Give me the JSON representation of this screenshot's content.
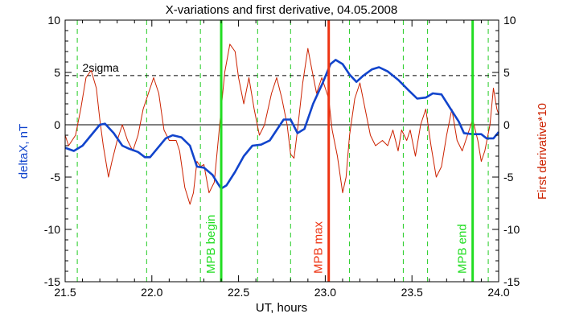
{
  "chart_data": {
    "type": "line",
    "title": "X-variations and first derivative, 04.05.2008",
    "xlabel": "UT, hours",
    "ylabel_left": "deltaX, nT",
    "ylabel_right": "First derivative*10",
    "xlim": [
      21.5,
      24.0
    ],
    "ylim": [
      -15,
      10
    ],
    "x_ticks": [
      21.5,
      22.0,
      22.5,
      23.0,
      23.5,
      24.0
    ],
    "x_tick_labels": [
      "21.5",
      "22.0",
      "22.5",
      "23.0",
      "23.5",
      "24.0"
    ],
    "y_ticks": [
      -15,
      -10,
      -5,
      0,
      5,
      10
    ],
    "y_tick_labels": [
      "-15",
      "-10",
      "-5",
      "0",
      "5",
      "10"
    ],
    "threshold": {
      "value": 4.7,
      "label": "2sigma",
      "style": "dashed"
    },
    "zero_line": 0,
    "dashed_verticals": [
      21.57,
      21.97,
      22.28,
      22.61,
      22.8,
      23.14,
      23.45,
      23.59,
      23.94
    ],
    "markers": [
      {
        "x": 22.4,
        "label": "MPB begin",
        "color": "#22dd22"
      },
      {
        "x": 23.02,
        "label": "MPB max",
        "color": "#ee3311"
      },
      {
        "x": 23.85,
        "label": "MPB end",
        "color": "#22dd22"
      }
    ],
    "series": [
      {
        "color": "#1144cc",
        "points": [
          [
            21.5,
            -2.2
          ],
          [
            21.55,
            -2.5
          ],
          [
            21.6,
            -2.0
          ],
          [
            21.65,
            -1.0
          ],
          [
            21.7,
            0.0
          ],
          [
            21.73,
            0.1
          ],
          [
            21.78,
            -0.8
          ],
          [
            21.83,
            -2.0
          ],
          [
            21.87,
            -2.3
          ],
          [
            21.92,
            -2.6
          ],
          [
            21.96,
            -3.1
          ],
          [
            21.99,
            -3.1
          ],
          [
            22.04,
            -2.1
          ],
          [
            22.08,
            -1.3
          ],
          [
            22.12,
            -1.0
          ],
          [
            22.17,
            -1.2
          ],
          [
            22.22,
            -2.0
          ],
          [
            22.26,
            -4.0
          ],
          [
            22.3,
            -4.1
          ],
          [
            22.35,
            -4.8
          ],
          [
            22.38,
            -5.6
          ],
          [
            22.4,
            -6.1
          ],
          [
            22.43,
            -5.8
          ],
          [
            22.48,
            -4.5
          ],
          [
            22.53,
            -3.0
          ],
          [
            22.58,
            -2.0
          ],
          [
            22.63,
            -1.9
          ],
          [
            22.68,
            -1.5
          ],
          [
            22.72,
            -0.5
          ],
          [
            22.76,
            0.5
          ],
          [
            22.8,
            0.5
          ],
          [
            22.84,
            -0.8
          ],
          [
            22.88,
            -0.4
          ],
          [
            22.93,
            2.0
          ],
          [
            22.98,
            3.8
          ],
          [
            23.03,
            5.8
          ],
          [
            23.06,
            6.2
          ],
          [
            23.1,
            5.8
          ],
          [
            23.14,
            4.8
          ],
          [
            23.18,
            4.1
          ],
          [
            23.22,
            4.7
          ],
          [
            23.27,
            5.3
          ],
          [
            23.31,
            5.5
          ],
          [
            23.36,
            5.1
          ],
          [
            23.42,
            4.3
          ],
          [
            23.48,
            3.3
          ],
          [
            23.53,
            2.5
          ],
          [
            23.58,
            2.6
          ],
          [
            23.62,
            3.0
          ],
          [
            23.67,
            2.9
          ],
          [
            23.72,
            1.6
          ],
          [
            23.77,
            0.3
          ],
          [
            23.8,
            -0.8
          ],
          [
            23.85,
            -0.9
          ],
          [
            23.9,
            -0.9
          ],
          [
            23.93,
            -1.3
          ],
          [
            23.97,
            -1.3
          ],
          [
            24.0,
            -0.7
          ]
        ]
      },
      {
        "color": "#cc2200",
        "points": [
          [
            21.5,
            -1.0
          ],
          [
            21.52,
            -2.0
          ],
          [
            21.56,
            -1.0
          ],
          [
            21.59,
            1.5
          ],
          [
            21.62,
            4.5
          ],
          [
            21.65,
            5.2
          ],
          [
            21.68,
            3.5
          ],
          [
            21.7,
            0.5
          ],
          [
            21.72,
            -2.0
          ],
          [
            21.75,
            -5.0
          ],
          [
            21.77,
            -3.5
          ],
          [
            21.8,
            -1.5
          ],
          [
            21.83,
            0.0
          ],
          [
            21.86,
            -1.5
          ],
          [
            21.89,
            -2.5
          ],
          [
            21.92,
            -1.0
          ],
          [
            21.95,
            1.5
          ],
          [
            21.98,
            3.0
          ],
          [
            22.01,
            4.5
          ],
          [
            22.04,
            3.0
          ],
          [
            22.07,
            -0.5
          ],
          [
            22.1,
            -1.5
          ],
          [
            22.14,
            -1.5
          ],
          [
            22.16,
            -2.5
          ],
          [
            22.19,
            -6.0
          ],
          [
            22.22,
            -7.6
          ],
          [
            22.24,
            -6.5
          ],
          [
            22.26,
            -3.5
          ],
          [
            22.28,
            -4.0
          ],
          [
            22.3,
            -3.8
          ],
          [
            22.33,
            -6.5
          ],
          [
            22.36,
            -5.5
          ],
          [
            22.38,
            -2.0
          ],
          [
            22.4,
            1.5
          ],
          [
            22.42,
            5.0
          ],
          [
            22.45,
            7.7
          ],
          [
            22.48,
            7.0
          ],
          [
            22.5,
            4.5
          ],
          [
            22.53,
            2.0
          ],
          [
            22.56,
            4.5
          ],
          [
            22.59,
            1.5
          ],
          [
            22.62,
            -1.0
          ],
          [
            22.65,
            0.0
          ],
          [
            22.69,
            3.0
          ],
          [
            22.72,
            4.5
          ],
          [
            22.75,
            2.5
          ],
          [
            22.78,
            0.0
          ],
          [
            22.8,
            -2.8
          ],
          [
            22.82,
            -3.2
          ],
          [
            22.84,
            -0.5
          ],
          [
            22.87,
            4.0
          ],
          [
            22.9,
            7.3
          ],
          [
            22.92,
            5.5
          ],
          [
            22.95,
            3.0
          ],
          [
            22.98,
            4.5
          ],
          [
            23.02,
            2.5
          ],
          [
            23.04,
            -0.5
          ],
          [
            23.07,
            -3.0
          ],
          [
            23.1,
            -6.5
          ],
          [
            23.12,
            -5.0
          ],
          [
            23.14,
            -1.0
          ],
          [
            23.17,
            2.5
          ],
          [
            23.2,
            4.0
          ],
          [
            23.23,
            1.5
          ],
          [
            23.26,
            -1.0
          ],
          [
            23.29,
            -2.0
          ],
          [
            23.33,
            -1.5
          ],
          [
            23.36,
            -2.0
          ],
          [
            23.39,
            -0.5
          ],
          [
            23.42,
            -2.5
          ],
          [
            23.44,
            -0.5
          ],
          [
            23.47,
            -1.5
          ],
          [
            23.49,
            -0.5
          ],
          [
            23.52,
            -3.0
          ],
          [
            23.55,
            0.0
          ],
          [
            23.58,
            1.5
          ],
          [
            23.61,
            -2.0
          ],
          [
            23.64,
            -5.0
          ],
          [
            23.67,
            -4.0
          ],
          [
            23.7,
            -1.0
          ],
          [
            23.73,
            1.5
          ],
          [
            23.76,
            -1.5
          ],
          [
            23.79,
            -2.5
          ],
          [
            23.82,
            -1.0
          ],
          [
            23.85,
            0.5
          ],
          [
            23.88,
            -1.5
          ],
          [
            23.9,
            -3.5
          ],
          [
            23.92,
            -2.5
          ],
          [
            23.95,
            0.0
          ],
          [
            23.97,
            3.5
          ],
          [
            23.99,
            1.5
          ],
          [
            24.0,
            1.0
          ]
        ]
      }
    ]
  }
}
